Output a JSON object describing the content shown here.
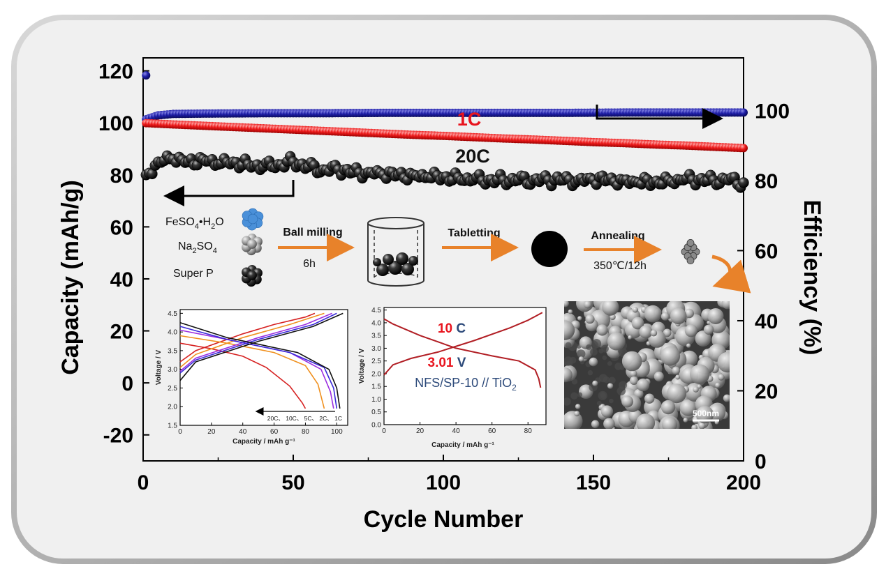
{
  "chart_data": [
    {
      "type": "scatter",
      "xlabel": "Cycle Number",
      "ylabel": "Capacity (mAh/g)",
      "y2label": "Efficiency (%)",
      "xlim": [
        0,
        200
      ],
      "ylim": [
        -30,
        125
      ],
      "y2lim": [
        0,
        115
      ],
      "x_ticks": [
        "0",
        "50",
        "100",
        "150",
        "200"
      ],
      "y_ticks": [
        "-20",
        "0",
        "20",
        "40",
        "60",
        "80",
        "100",
        "120"
      ],
      "y2_ticks": [
        "0",
        "20",
        "40",
        "60",
        "80",
        "100"
      ],
      "grid": false,
      "series": [
        {
          "name": "1C",
          "axis": "left",
          "color": "#e8141e",
          "x": [
            1,
            10,
            20,
            30,
            40,
            50,
            60,
            70,
            80,
            90,
            100,
            110,
            120,
            130,
            140,
            150,
            160,
            170,
            180,
            190,
            200
          ],
          "y": [
            99.9,
            99.4,
            98.9,
            98.4,
            97.9,
            97.4,
            96.9,
            96.4,
            95.9,
            95.4,
            95.0,
            94.5,
            94.0,
            93.6,
            93.1,
            92.6,
            92.2,
            91.7,
            91.3,
            90.8,
            90.3
          ]
        },
        {
          "name": "20C",
          "axis": "left",
          "color": "#111111",
          "x": [
            1,
            5,
            10,
            15,
            20,
            25,
            30,
            35,
            40,
            45,
            50,
            55,
            60,
            65,
            70,
            75,
            80,
            85,
            90,
            95,
            100,
            105,
            110,
            115,
            120,
            125,
            130,
            135,
            140,
            145,
            150,
            155,
            160,
            165,
            170,
            175,
            180,
            185,
            190,
            195,
            200
          ],
          "y": [
            80,
            85,
            86,
            85,
            86,
            84,
            85,
            84,
            83,
            84,
            85,
            83,
            82,
            82,
            81,
            81,
            80,
            80,
            80,
            79,
            79,
            79,
            78,
            78,
            78,
            78,
            78,
            78,
            78,
            78,
            78,
            78,
            78,
            77,
            77,
            78,
            78,
            78,
            78,
            78,
            77
          ]
        },
        {
          "name": "Efficiency",
          "axis": "right",
          "color": "#1a1a8c",
          "x": [
            1,
            5,
            10,
            20,
            40,
            60,
            80,
            100,
            120,
            140,
            160,
            180,
            200
          ],
          "y": [
            97.5,
            98.6,
            99,
            99.1,
            99.2,
            99.2,
            99.3,
            99.3,
            99.3,
            99.3,
            99.4,
            99.4,
            99.4
          ],
          "outlier": {
            "x": 1,
            "y": 110
          }
        }
      ],
      "annotations": {
        "label_1c": "1C",
        "label_20c": "20C"
      }
    },
    {
      "type": "line",
      "xlabel": "Capacity / mAh g⁻¹",
      "ylabel": "Voltage / V",
      "xlim": [
        0,
        107
      ],
      "ylim": [
        1.5,
        4.6
      ],
      "x_ticks": [
        "0",
        "20",
        "40",
        "60",
        "80",
        "100"
      ],
      "y_ticks": [
        "1.5",
        "2.0",
        "2.5",
        "3.0",
        "3.5",
        "4.0",
        "4.5"
      ],
      "arrow_label": "20C、 10C、 5C、 2C、 1C",
      "series": [
        {
          "color": "#d62020",
          "charge": [
            [
              0,
              3.2
            ],
            [
              10,
              3.5
            ],
            [
              40,
              3.95
            ],
            [
              60,
              4.2
            ],
            [
              80,
              4.4
            ],
            [
              86,
              4.5
            ]
          ],
          "discharge": [
            [
              0,
              3.7
            ],
            [
              20,
              3.55
            ],
            [
              40,
              3.35
            ],
            [
              55,
              3.05
            ],
            [
              70,
              2.55
            ],
            [
              78,
              2.1
            ],
            [
              80,
              1.95
            ]
          ]
        },
        {
          "color": "#f0901e",
          "charge": [
            [
              0,
              3.05
            ],
            [
              10,
              3.4
            ],
            [
              40,
              3.85
            ],
            [
              70,
              4.2
            ],
            [
              92,
              4.5
            ]
          ],
          "discharge": [
            [
              0,
              3.9
            ],
            [
              30,
              3.7
            ],
            [
              60,
              3.45
            ],
            [
              80,
              3.1
            ],
            [
              88,
              2.6
            ],
            [
              92,
              1.95
            ]
          ]
        },
        {
          "color": "#9b2ee0",
          "charge": [
            [
              0,
              2.95
            ],
            [
              10,
              3.3
            ],
            [
              50,
              3.85
            ],
            [
              80,
              4.2
            ],
            [
              97,
              4.5
            ]
          ],
          "discharge": [
            [
              0,
              4.05
            ],
            [
              30,
              3.8
            ],
            [
              70,
              3.45
            ],
            [
              90,
              3.0
            ],
            [
              96,
              2.4
            ],
            [
              98,
              1.95
            ]
          ]
        },
        {
          "color": "#3a2ad8",
          "charge": [
            [
              0,
              2.9
            ],
            [
              10,
              3.25
            ],
            [
              50,
              3.8
            ],
            [
              85,
              4.2
            ],
            [
              100,
              4.5
            ]
          ],
          "discharge": [
            [
              0,
              4.15
            ],
            [
              30,
              3.8
            ],
            [
              70,
              3.45
            ],
            [
              92,
              3.05
            ],
            [
              98,
              2.5
            ],
            [
              100,
              1.95
            ]
          ]
        },
        {
          "color": "#111111",
          "charge": [
            [
              0,
              2.7
            ],
            [
              10,
              3.2
            ],
            [
              50,
              3.75
            ],
            [
              85,
              4.15
            ],
            [
              104,
              4.5
            ]
          ],
          "discharge": [
            [
              0,
              4.25
            ],
            [
              30,
              3.85
            ],
            [
              75,
              3.45
            ],
            [
              95,
              3.0
            ],
            [
              100,
              2.5
            ],
            [
              102,
              1.95
            ]
          ]
        }
      ]
    },
    {
      "type": "line",
      "xlabel": "Capacity / mAh g⁻¹",
      "ylabel": "Voltage / V",
      "xlim": [
        0,
        90
      ],
      "ylim": [
        0,
        4.6
      ],
      "x_ticks": [
        "0",
        "20",
        "40",
        "60",
        "80"
      ],
      "y_ticks": [
        "0.0",
        "0.5",
        "1.0",
        "1.5",
        "2.0",
        "2.5",
        "3.0",
        "3.5",
        "4.0",
        "4.5"
      ],
      "rate_value": "10",
      "rate_unit": "C",
      "voltage_value": "3.01",
      "voltage_unit": "V",
      "cell_label_main": "NFS/SP-10 // TiO",
      "cell_label_sub": "2",
      "series": [
        {
          "name": "charge",
          "color": "#b11e24",
          "points": [
            [
              0,
              1.95
            ],
            [
              5,
              2.35
            ],
            [
              15,
              2.6
            ],
            [
              30,
              2.85
            ],
            [
              50,
              3.3
            ],
            [
              70,
              3.8
            ],
            [
              80,
              4.1
            ],
            [
              88,
              4.4
            ]
          ]
        },
        {
          "name": "discharge",
          "color": "#b11e24",
          "points": [
            [
              0,
              4.15
            ],
            [
              5,
              3.95
            ],
            [
              20,
              3.5
            ],
            [
              40,
              3.0
            ],
            [
              60,
              2.7
            ],
            [
              75,
              2.5
            ],
            [
              84,
              2.15
            ],
            [
              86,
              1.8
            ],
            [
              87,
              1.45
            ]
          ]
        }
      ]
    }
  ],
  "synthesis": {
    "reagents": [
      {
        "name": "FeSO",
        "sub": "4",
        "tail": "•H",
        "sub2": "2",
        "tail2": "O",
        "color": "#4a90d9"
      },
      {
        "name": "Na",
        "sub": "2",
        "tail": "SO",
        "sub2": "4",
        "tail2": "",
        "color": "#b8b8b8"
      },
      {
        "name": "Super P",
        "sub": "",
        "tail": "",
        "sub2": "",
        "tail2": "",
        "color": "#111111"
      }
    ],
    "step1_label": "Ball milling",
    "step1_sub": "6h",
    "step2_label": "Tabletting",
    "step3_label": "Annealing",
    "step3_sub": "350℃/12h",
    "arrow_color": "#e8822a"
  },
  "sem": {
    "scale_label": "500nm"
  }
}
